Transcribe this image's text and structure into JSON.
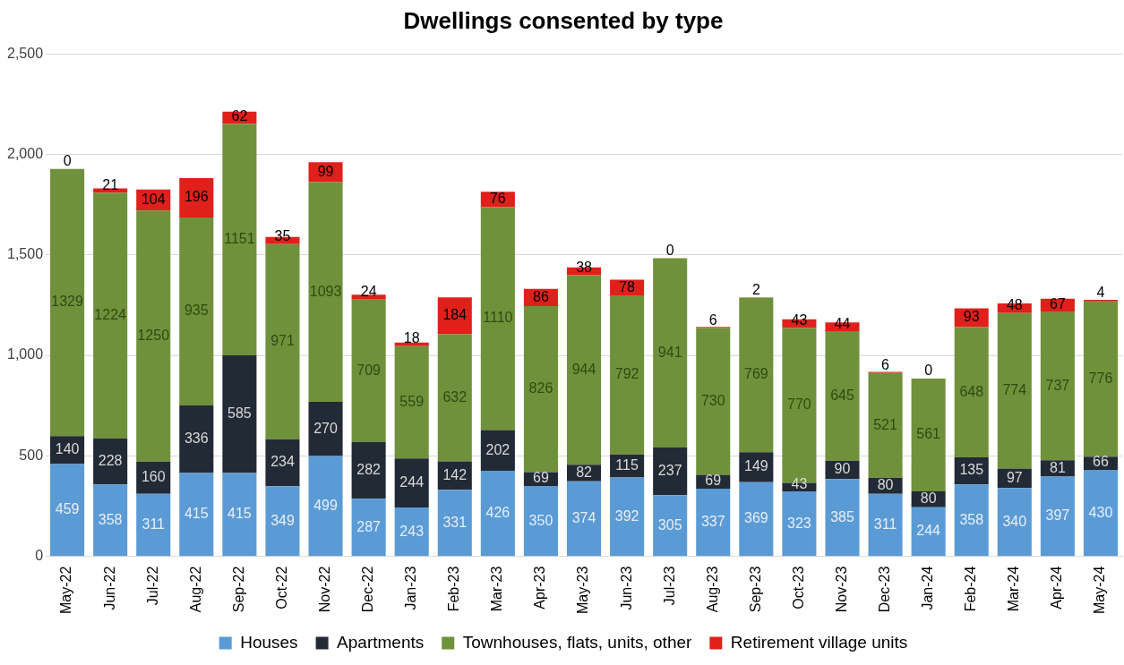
{
  "chart_data": {
    "type": "bar",
    "title": "Dwellings consented by type",
    "stacked": true,
    "data_labels": true,
    "legend": "bottom",
    "grid": "y",
    "categories": [
      "May-22",
      "Jun-22",
      "Jul-22",
      "Aug-22",
      "Sep-22",
      "Oct-22",
      "Nov-22",
      "Dec-22",
      "Jan-23",
      "Feb-23",
      "Mar-23",
      "Apr-23",
      "May-23",
      "Jun-23",
      "Jul-23",
      "Aug-23",
      "Sep-23",
      "Oct-23",
      "Nov-23",
      "Dec-23",
      "Jan-24",
      "Feb-24",
      "Mar-24",
      "Apr-24",
      "May-24"
    ],
    "ylim": [
      0,
      2500
    ],
    "yticks": [
      0,
      {
        "value": 500,
        "label": "500"
      },
      {
        "value": 1000,
        "label": "1,000"
      },
      {
        "value": 1500,
        "label": "1,500"
      },
      {
        "value": 2000,
        "label": "2,000"
      },
      {
        "value": 2500,
        "label": "2,500"
      }
    ],
    "series": [
      {
        "name": "Houses",
        "color": "#5b9bd5",
        "values": [
          459,
          358,
          311,
          415,
          415,
          349,
          499,
          287,
          243,
          331,
          426,
          350,
          374,
          392,
          305,
          337,
          369,
          323,
          385,
          311,
          244,
          358,
          340,
          397,
          430
        ]
      },
      {
        "name": "Apartments",
        "color": "#222a35",
        "values": [
          140,
          228,
          160,
          336,
          585,
          234,
          270,
          282,
          244,
          142,
          202,
          69,
          82,
          115,
          237,
          69,
          149,
          43,
          90,
          80,
          80,
          135,
          97,
          81,
          66
        ]
      },
      {
        "name": "Townhouses, flats, units, other",
        "color": "#70913b",
        "values": [
          1329,
          1224,
          1250,
          935,
          1151,
          971,
          1093,
          709,
          559,
          632,
          1110,
          826,
          944,
          792,
          941,
          730,
          769,
          770,
          645,
          521,
          561,
          648,
          774,
          737,
          776
        ]
      },
      {
        "name": "Retirement village units",
        "color": "#e0201b",
        "values": [
          0,
          21,
          104,
          196,
          62,
          35,
          99,
          24,
          18,
          184,
          76,
          86,
          38,
          78,
          0,
          6,
          2,
          43,
          44,
          6,
          0,
          93,
          48,
          67,
          4
        ]
      }
    ]
  }
}
